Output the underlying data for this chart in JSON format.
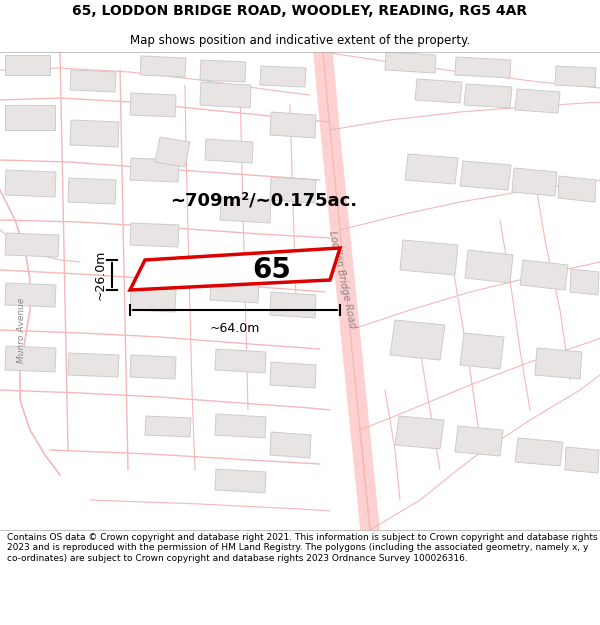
{
  "title_line1": "65, LODDON BRIDGE ROAD, WOODLEY, READING, RG5 4AR",
  "title_line2": "Map shows position and indicative extent of the property.",
  "area_label": "~709m²/~0.175ac.",
  "property_number": "65",
  "dim_width": "~64.0m",
  "dim_height": "~26.0m",
  "footer_text": "Contains OS data © Crown copyright and database right 2021. This information is subject to Crown copyright and database rights 2023 and is reproduced with the permission of HM Land Registry. The polygons (including the associated geometry, namely x, y co-ordinates) are subject to Crown copyright and database rights 2023 Ordnance Survey 100026316.",
  "bg_color": "#ffffff",
  "map_bg": "#ffffff",
  "road_color": "#f5b8b8",
  "building_fill": "#e8e4e4",
  "building_outline": "#cccccc",
  "property_fill": "#ffffff",
  "property_outline": "#dd0000",
  "title_bg": "#ffffff",
  "footer_bg": "#ffffff",
  "road_label": "Loddon Bridge Road",
  "road_label2": "Munro Avenue"
}
